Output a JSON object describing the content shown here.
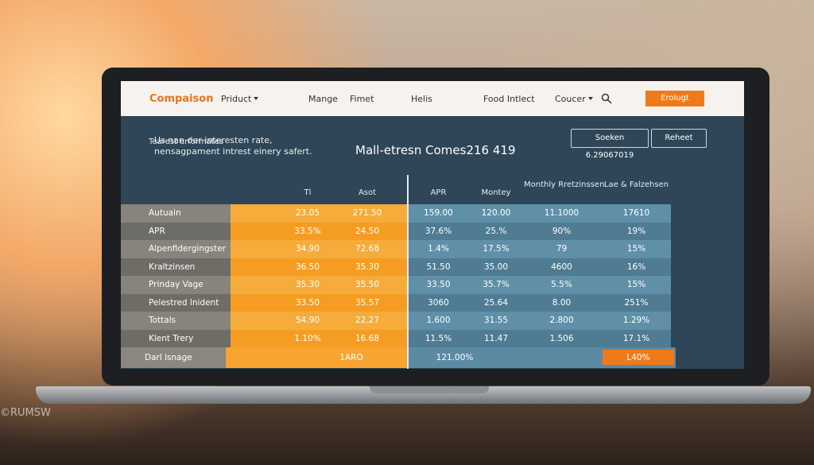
{
  "nav": {
    "brand": "Compaison",
    "items": [
      "Priduct",
      "Mange",
      "Fimet",
      "Helis",
      "Food Intlect",
      "Coucer"
    ],
    "button": "Erolugt"
  },
  "intro": "Us nan der interesten rate, nensagpament intrest einery safert.",
  "title": "Mall-etresn Comes216 419",
  "actions": [
    "Soeken 6.29067019",
    "Reheet"
  ],
  "table": {
    "header": [
      "Tearest erformates",
      "Tl",
      "Asot",
      "APR",
      "Montey",
      "Monthly Rretzinssen",
      "Lae & Falzehsen"
    ],
    "rows": [
      [
        "Autuain",
        "23.05",
        "271.50",
        "159.00",
        "120.00",
        "11.1000",
        "17610"
      ],
      [
        "APR",
        "33.5%",
        "24.50",
        "37.6%",
        "25.%",
        "90%",
        "19%"
      ],
      [
        "Alpenfidergingster",
        "34.90",
        "72.68",
        "1.4%",
        "17.5%",
        "79",
        "15%"
      ],
      [
        "Kraltzinsen",
        "36.50",
        "35.30",
        "51.50",
        "35.00",
        "4600",
        "16%"
      ],
      [
        "Prinday Vage",
        "35.30",
        "35.50",
        "33.50",
        "35.7%",
        "5.5%",
        "15%"
      ],
      [
        "Pelestred lnident",
        "33.50",
        "35.57",
        "3060",
        "25.64",
        "8.00",
        "251%"
      ],
      [
        "Tottals",
        "54.90",
        "22.27",
        "1.600",
        "31.55",
        "2.800",
        "1.29%"
      ],
      [
        "Klent Trery",
        "1.10%",
        "16.68",
        "11.5%",
        "11.47",
        "1.506",
        "17.1%"
      ]
    ],
    "footer": [
      "Darl lsnage",
      "1ARO",
      "121.00%",
      "L40%"
    ]
  },
  "watermark": "©RUMSW"
}
